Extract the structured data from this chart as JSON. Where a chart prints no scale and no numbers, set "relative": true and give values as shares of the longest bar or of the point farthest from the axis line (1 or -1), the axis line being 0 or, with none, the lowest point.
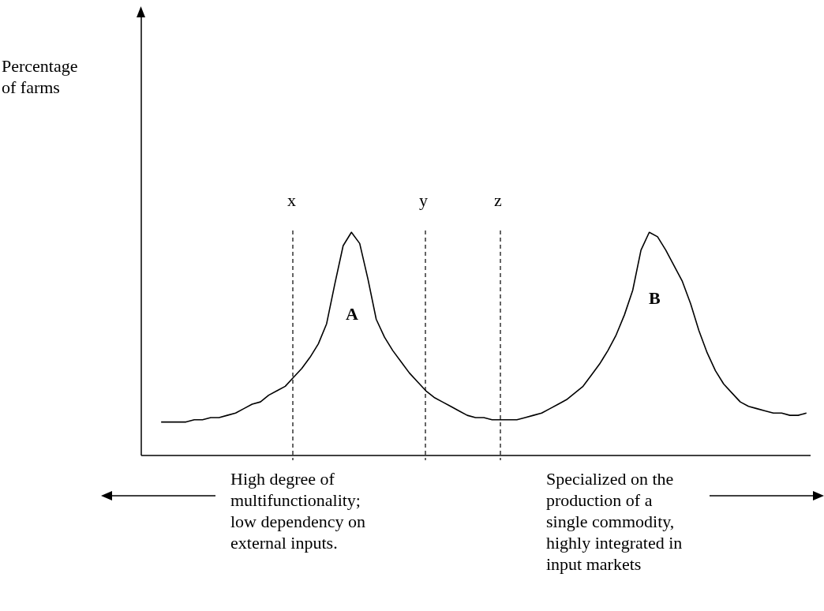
{
  "chart_data": {
    "type": "line",
    "relative": true,
    "categories": [
      null,
      null,
      null,
      null,
      null,
      null,
      null,
      null,
      null,
      null,
      null,
      null,
      null,
      null,
      null,
      null,
      null,
      null,
      null,
      null,
      null,
      null,
      null,
      null,
      null,
      null,
      null,
      null,
      null,
      null,
      null,
      null,
      null,
      null,
      null,
      null,
      null,
      null,
      null,
      null,
      null,
      null,
      null,
      null,
      null,
      null,
      null,
      null,
      null,
      null,
      null,
      null,
      null,
      null,
      null,
      null,
      null,
      null,
      null,
      null,
      null,
      null,
      null,
      null,
      null,
      null,
      null,
      null,
      null,
      null,
      null,
      null,
      null,
      null,
      null,
      null,
      null,
      null,
      null
    ],
    "series": [
      {
        "color": "#000000",
        "values": [
          0.15,
          0.15,
          0.15,
          0.15,
          0.16,
          0.16,
          0.17,
          0.17,
          0.18,
          0.19,
          0.21,
          0.23,
          0.24,
          0.27,
          0.29,
          0.31,
          0.35,
          0.39,
          0.44,
          0.5,
          0.59,
          0.77,
          0.94,
          1,
          0.95,
          0.79,
          0.61,
          0.53,
          0.47,
          0.42,
          0.37,
          0.33,
          0.29,
          0.26,
          0.24,
          0.22,
          0.2,
          0.18,
          0.17,
          0.17,
          0.16,
          0.16,
          0.16,
          0.16,
          0.17,
          0.18,
          0.19,
          0.21,
          0.23,
          0.25,
          0.28,
          0.31,
          0.36,
          0.41,
          0.47,
          0.54,
          0.63,
          0.74,
          0.92,
          1,
          0.98,
          0.92,
          0.85,
          0.78,
          0.68,
          0.56,
          0.46,
          0.38,
          0.32,
          0.28,
          0.24,
          0.22,
          0.21,
          0.2,
          0.19,
          0.19,
          0.18,
          0.18,
          0.19
        ]
      }
    ],
    "marker": "none",
    "line_style": "solid",
    "grid": "x",
    "annotations": [
      "Percentage\nof farms",
      "x",
      "y",
      "z",
      "A",
      "B",
      "High degree of\nmultifunctionality;\nlow dependency on\nexternal inputs.",
      "Specialized on the\nproduction of a\nsingle commodity,\nhighly integrated in\ninput markets"
    ]
  }
}
